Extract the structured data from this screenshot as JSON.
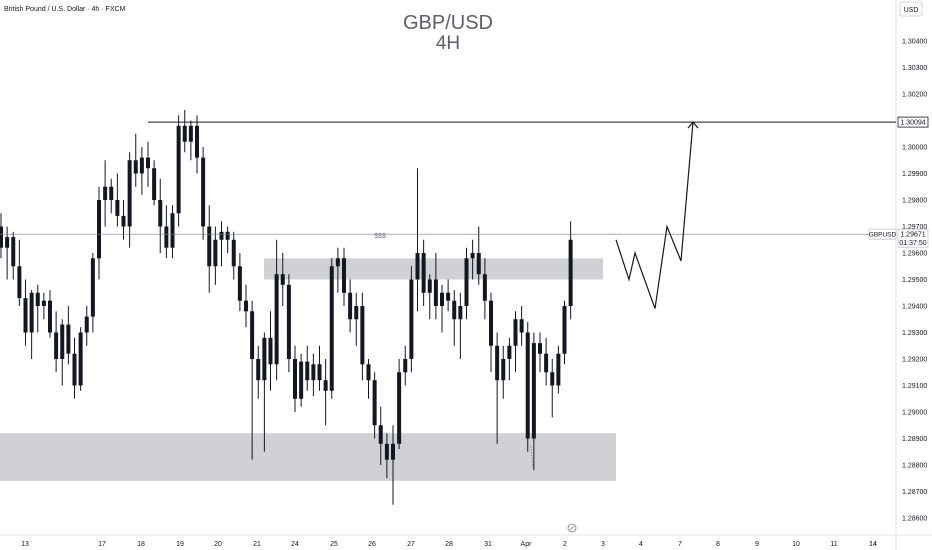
{
  "header": {
    "symbol_description": "British Pound / U.S. Dollar · 4h · FXCM",
    "title": "GBP/USD",
    "subtitle": "4H",
    "currency_button": "USD"
  },
  "price_scale": {
    "ticks": [
      "1.30400",
      "1.30300",
      "1.30200",
      "1.30100",
      "1.30000",
      "1.29900",
      "1.29800",
      "1.29700",
      "1.29600",
      "1.29500",
      "1.29400",
      "1.29300",
      "1.29200",
      "1.29100",
      "1.29000",
      "1.28900",
      "1.28800",
      "1.28700",
      "1.28600"
    ],
    "resistance_label": "1.30094",
    "current_symbol": "GBPUSD",
    "current_price": "1.29671",
    "countdown": "01:37:50"
  },
  "time_axis": {
    "labels": [
      "13",
      "14",
      "17",
      "18",
      "19",
      "20",
      "21",
      "24",
      "25",
      "26",
      "27",
      "28",
      "31",
      "Apr",
      "2",
      "3",
      "4",
      "7",
      "8",
      "9",
      "10",
      "11",
      "14"
    ]
  },
  "annotations": {
    "liquidity_marker": "$$$"
  },
  "colors": {
    "background": "#ffffff",
    "candle_body": "#131722",
    "candle_wick": "#131722",
    "zone_fill": "#9598a1",
    "line": "#131722",
    "axis_text": "#131722"
  },
  "chart_data": {
    "type": "candlestick",
    "symbol": "GBPUSD",
    "timeframe": "4h",
    "ylim": [
      1.2856,
      1.3048
    ],
    "resistance_level": 1.30094,
    "current_price": 1.29671,
    "zones": [
      {
        "price_top": 1.2958,
        "price_bottom": 1.295,
        "start_date": "21",
        "end_date": "3"
      },
      {
        "price_top": 1.2892,
        "price_bottom": 1.2874,
        "start_date": "before 13",
        "end_date": "3"
      }
    ],
    "projection_path": [
      {
        "time": "3",
        "price": 1.2965
      },
      {
        "time": "4",
        "price": 1.295
      },
      {
        "time": "4",
        "price": 1.296
      },
      {
        "time": "7",
        "price": 1.2939
      },
      {
        "time": "7",
        "price": 1.297
      },
      {
        "time": "7",
        "price": 1.2957
      },
      {
        "time": "8",
        "price": 1.30094
      }
    ],
    "candles": [
      [
        1.297,
        1.2975,
        1.2958,
        1.2962
      ],
      [
        1.2962,
        1.297,
        1.295,
        1.2966
      ],
      [
        1.2966,
        1.2968,
        1.295,
        1.2955
      ],
      [
        1.2955,
        1.2965,
        1.294,
        1.2943
      ],
      [
        1.2943,
        1.295,
        1.2925,
        1.293
      ],
      [
        1.293,
        1.2946,
        1.292,
        1.2945
      ],
      [
        1.2945,
        1.2948,
        1.293,
        1.294
      ],
      [
        1.294,
        1.2945,
        1.2935,
        1.2942
      ],
      [
        1.2942,
        1.2946,
        1.2928,
        1.293
      ],
      [
        1.293,
        1.2938,
        1.2915,
        1.292
      ],
      [
        1.292,
        1.2935,
        1.291,
        1.2933
      ],
      [
        1.2933,
        1.294,
        1.2918,
        1.2922
      ],
      [
        1.2922,
        1.2928,
        1.2905,
        1.291
      ],
      [
        1.291,
        1.2932,
        1.2908,
        1.293
      ],
      [
        1.293,
        1.294,
        1.2925,
        1.2936
      ],
      [
        1.2936,
        1.296,
        1.293,
        1.2958
      ],
      [
        1.2958,
        1.2985,
        1.295,
        1.298
      ],
      [
        1.298,
        1.2995,
        1.297,
        1.2985
      ],
      [
        1.2985,
        1.2988,
        1.2975,
        1.298
      ],
      [
        1.298,
        1.299,
        1.297,
        1.2974
      ],
      [
        1.2974,
        1.298,
        1.2965,
        1.297
      ],
      [
        1.297,
        1.2998,
        1.2962,
        1.2995
      ],
      [
        1.2995,
        1.3005,
        1.2985,
        1.299
      ],
      [
        1.299,
        1.3,
        1.2982,
        1.2996
      ],
      [
        1.2996,
        1.3002,
        1.2985,
        1.2992
      ],
      [
        1.2992,
        1.2995,
        1.2978,
        1.298
      ],
      [
        1.298,
        1.2988,
        1.296,
        1.297
      ],
      [
        1.297,
        1.2978,
        1.2958,
        1.2962
      ],
      [
        1.2962,
        1.2978,
        1.2958,
        1.2975
      ],
      [
        1.2975,
        1.3012,
        1.297,
        1.3008
      ],
      [
        1.3008,
        1.3014,
        1.2998,
        1.3002
      ],
      [
        1.3002,
        1.301,
        1.2995,
        1.3008
      ],
      [
        1.3008,
        1.3012,
        1.299,
        1.2996
      ],
      [
        1.2996,
        1.3,
        1.2965,
        1.297
      ],
      [
        1.297,
        1.2978,
        1.2945,
        1.2955
      ],
      [
        1.2955,
        1.297,
        1.2948,
        1.2965
      ],
      [
        1.2965,
        1.2972,
        1.2955,
        1.2968
      ],
      [
        1.2968,
        1.297,
        1.296,
        1.2965
      ],
      [
        1.2965,
        1.2968,
        1.295,
        1.2955
      ],
      [
        1.2955,
        1.296,
        1.2938,
        1.2942
      ],
      [
        1.2942,
        1.2948,
        1.2932,
        1.2938
      ],
      [
        1.2938,
        1.2942,
        1.2882,
        1.292
      ],
      [
        1.292,
        1.2925,
        1.2905,
        1.2912
      ],
      [
        1.2912,
        1.293,
        1.2885,
        1.2928
      ],
      [
        1.2928,
        1.2938,
        1.2908,
        1.2918
      ],
      [
        1.2918,
        1.2965,
        1.2912,
        1.2952
      ],
      [
        1.2952,
        1.296,
        1.294,
        1.2948
      ],
      [
        1.2948,
        1.2952,
        1.2915,
        1.292
      ],
      [
        1.292,
        1.2925,
        1.29,
        1.2905
      ],
      [
        1.2905,
        1.2922,
        1.2902,
        1.2919
      ],
      [
        1.2919,
        1.2925,
        1.2908,
        1.2912
      ],
      [
        1.2912,
        1.2922,
        1.2906,
        1.2918
      ],
      [
        1.2918,
        1.2925,
        1.2908,
        1.2912
      ],
      [
        1.2912,
        1.292,
        1.2895,
        1.2908
      ],
      [
        1.2908,
        1.2958,
        1.2905,
        1.2955
      ],
      [
        1.2955,
        1.2962,
        1.2945,
        1.2958
      ],
      [
        1.2958,
        1.2962,
        1.294,
        1.2945
      ],
      [
        1.2945,
        1.295,
        1.293,
        1.2935
      ],
      [
        1.2935,
        1.2945,
        1.2925,
        1.294
      ],
      [
        1.294,
        1.2945,
        1.2912,
        1.2918
      ],
      [
        1.2918,
        1.292,
        1.2905,
        1.2912
      ],
      [
        1.2912,
        1.2915,
        1.289,
        1.2895
      ],
      [
        1.2895,
        1.2902,
        1.288,
        1.2888
      ],
      [
        1.2888,
        1.2892,
        1.2875,
        1.2882
      ],
      [
        1.2882,
        1.2895,
        1.2865,
        1.2888
      ],
      [
        1.2888,
        1.292,
        1.2886,
        1.2915
      ],
      [
        1.2915,
        1.2925,
        1.291,
        1.292
      ],
      [
        1.292,
        1.2955,
        1.2915,
        1.295
      ],
      [
        1.295,
        1.2992,
        1.2938,
        1.296
      ],
      [
        1.296,
        1.2965,
        1.294,
        1.2945
      ],
      [
        1.2945,
        1.2952,
        1.2935,
        1.295
      ],
      [
        1.295,
        1.296,
        1.2935,
        1.294
      ],
      [
        1.294,
        1.2948,
        1.293,
        1.2945
      ],
      [
        1.2945,
        1.295,
        1.2938,
        1.2942
      ],
      [
        1.2942,
        1.2946,
        1.2925,
        1.2935
      ],
      [
        1.2935,
        1.2945,
        1.292,
        1.294
      ],
      [
        1.294,
        1.2962,
        1.2935,
        1.2958
      ],
      [
        1.2958,
        1.2965,
        1.295,
        1.296
      ],
      [
        1.296,
        1.297,
        1.2948,
        1.2952
      ],
      [
        1.2952,
        1.2958,
        1.2935,
        1.2942
      ],
      [
        1.2942,
        1.2945,
        1.2915,
        1.2925
      ],
      [
        1.2925,
        1.293,
        1.2888,
        1.2912
      ],
      [
        1.2912,
        1.2925,
        1.2905,
        1.292
      ],
      [
        1.292,
        1.2928,
        1.2912,
        1.2925
      ],
      [
        1.2925,
        1.2938,
        1.2915,
        1.2935
      ],
      [
        1.2935,
        1.294,
        1.2925,
        1.293
      ],
      [
        1.293,
        1.2934,
        1.2885,
        1.289
      ],
      [
        1.289,
        1.293,
        1.2878,
        1.2926
      ],
      [
        1.2926,
        1.293,
        1.2915,
        1.2922
      ],
      [
        1.2922,
        1.2928,
        1.291,
        1.2915
      ],
      [
        1.2915,
        1.292,
        1.2898,
        1.291
      ],
      [
        1.291,
        1.2925,
        1.2907,
        1.2922
      ],
      [
        1.2922,
        1.2942,
        1.2918,
        1.294
      ],
      [
        1.294,
        1.2972,
        1.2935,
        1.2965
      ]
    ]
  }
}
